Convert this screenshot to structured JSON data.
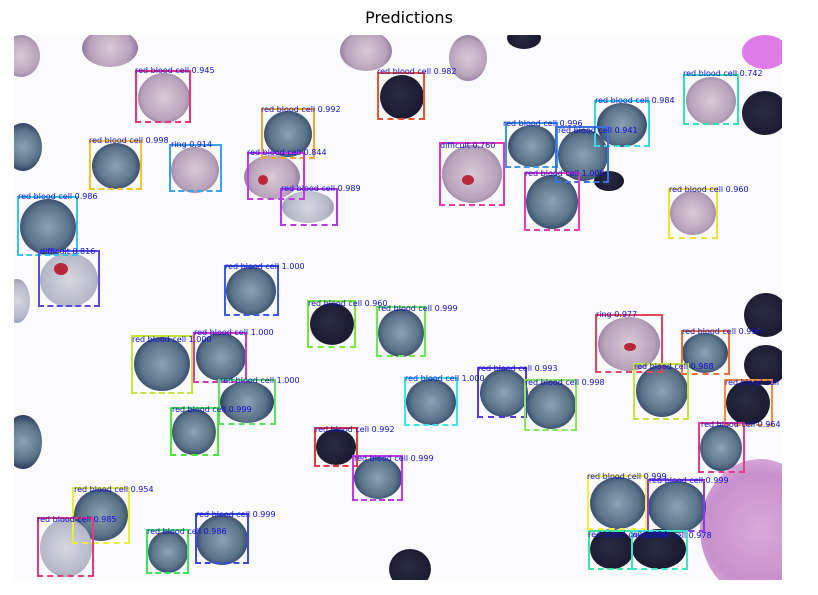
{
  "title": "Predictions",
  "colors": {
    "label_text": "#1010d8",
    "background": "#fbfafd",
    "cell_stain": "#2d3f63"
  },
  "detections": [
    {
      "label": "red blood cell 0.945",
      "color": "#e8357a"
    },
    {
      "label": "red blood cell 0.982",
      "color": "#f0542e"
    },
    {
      "label": "red blood cell 0.742",
      "color": "#34e0b8"
    },
    {
      "label": "red blood cell 0.992",
      "color": "#f6a531"
    },
    {
      "label": "red blood cell 0.984",
      "color": "#3ad6e6"
    },
    {
      "label": "red blood cell 0.998",
      "color": "#f6c234"
    },
    {
      "label": "ring 0.914",
      "color": "#3aa1ea"
    },
    {
      "label": "red blood cell 0.844",
      "color": "#c23ae0"
    },
    {
      "label": "difficult 0.760",
      "color": "#e63ab8"
    },
    {
      "label": "red blood cell 0.996",
      "color": "#3a9ae6"
    },
    {
      "label": "red blood cell 0.941",
      "color": "#3a73e6"
    },
    {
      "label": "red blood cell 0.989",
      "color": "#b13ae6"
    },
    {
      "label": "red blood cell 1.000",
      "color": "#e63ab8"
    },
    {
      "label": "red blood cell 0.960",
      "color": "#f6de3a"
    },
    {
      "label": "red blood cell 0.986",
      "color": "#3ac6ea"
    },
    {
      "label": "difficult 0.816",
      "color": "#5a4ae6"
    },
    {
      "label": "red blood cell 1.000",
      "color": "#3a5ee6"
    },
    {
      "label": "red blood cell 0.960",
      "color": "#7de63a"
    },
    {
      "label": "red blood cell 0.999",
      "color": "#6ee65a"
    },
    {
      "label": "ring 0.977",
      "color": "#e6455e"
    },
    {
      "label": "red blood cell 0.996",
      "color": "#f0703a"
    },
    {
      "label": "red blood cell 1.000",
      "color": "#c4e63a"
    },
    {
      "label": "red blood cell 1.000",
      "color": "#d23ac6"
    },
    {
      "label": "red blood cell 0.988",
      "color": "#c4e63a"
    },
    {
      "label": "red blood cell 0.993",
      "color": "#5a3ae6"
    },
    {
      "label": "red blood cell 1.000",
      "color": "#3ae6e6"
    },
    {
      "label": "red blood cell 1.000",
      "color": "#5ae65a"
    },
    {
      "label": "red blood cell 0.998",
      "color": "#8ae65a"
    },
    {
      "label": "red blood cell 0.959",
      "color": "#f0903a"
    },
    {
      "label": "red blood cell 0.999",
      "color": "#4ae63a"
    },
    {
      "label": "red blood cell 0.964",
      "color": "#e63a8a"
    },
    {
      "label": "red blood cell 0.992",
      "color": "#e63a3a"
    },
    {
      "label": "red blood cell 0.999",
      "color": "#c23ae6"
    },
    {
      "label": "red blood cell 0.954",
      "color": "#e6f03a"
    },
    {
      "label": "red blood cell 0.999",
      "color": "#f6f03a"
    },
    {
      "label": "red blood cell 0.999",
      "color": "#8a3ae6"
    },
    {
      "label": "red blood cell 0.999",
      "color": "#3a4ae6"
    },
    {
      "label": "red blood cell 0.985",
      "color": "#e63a7a"
    },
    {
      "label": "red blood cell 0.986",
      "color": "#3ae65a"
    },
    {
      "label": "red blood cell 0.984",
      "color": "#3ae6a0"
    },
    {
      "label": "red blood cell 0.978",
      "color": "#3ae6c8"
    }
  ]
}
